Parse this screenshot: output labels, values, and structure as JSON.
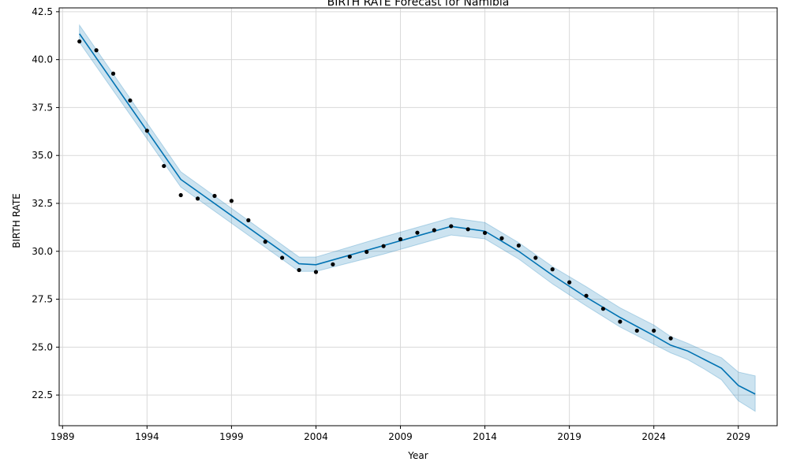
{
  "chart_data": {
    "type": "line",
    "title": "BIRTH RATE Forecast for Namibia",
    "xlabel": "Year",
    "ylabel": "BIRTH RATE",
    "xlim": [
      1988.8,
      2031.3
    ],
    "ylim": [
      20.9,
      42.7
    ],
    "grid": true,
    "x_ticks": [
      1989,
      1994,
      1999,
      2004,
      2009,
      2014,
      2019,
      2024,
      2029
    ],
    "y_ticks": [
      22.5,
      25.0,
      27.5,
      30.0,
      32.5,
      35.0,
      37.5,
      40.0,
      42.5
    ],
    "y_tick_labels": [
      "22.5",
      "25.0",
      "27.5",
      "30.0",
      "32.5",
      "35.0",
      "37.5",
      "40.0",
      "42.5"
    ],
    "colors": {
      "forecast_line": "#0072B2",
      "interval_fill": "#0072B2",
      "observed": "#000000",
      "grid": "#d9d9d9"
    },
    "observed": {
      "x": [
        1990,
        1991,
        1992,
        1993,
        1994,
        1995,
        1996,
        1997,
        1998,
        1999,
        2000,
        2001,
        2002,
        2003,
        2004,
        2005,
        2006,
        2007,
        2008,
        2009,
        2010,
        2011,
        2012,
        2013,
        2014,
        2015,
        2016,
        2017,
        2018,
        2019,
        2020,
        2021,
        2022,
        2023,
        2024,
        2025
      ],
      "y": [
        40.95,
        40.49,
        39.27,
        37.87,
        36.29,
        34.45,
        32.93,
        32.75,
        32.89,
        32.63,
        31.62,
        30.5,
        29.66,
        29.02,
        28.92,
        29.32,
        29.72,
        29.97,
        30.27,
        30.63,
        30.97,
        31.1,
        31.31,
        31.15,
        30.96,
        30.68,
        30.3,
        29.66,
        29.06,
        28.38,
        27.68,
        27.0,
        26.33,
        25.86,
        25.86,
        25.46
      ]
    },
    "forecast": {
      "x": [
        1990,
        1996,
        2003,
        2004,
        2008,
        2012,
        2014,
        2016,
        2018,
        2020,
        2022,
        2024,
        2025,
        2026,
        2027,
        2028,
        2029,
        2030
      ],
      "y": [
        41.35,
        33.75,
        29.35,
        29.3,
        30.3,
        31.3,
        31.05,
        30.0,
        28.75,
        27.6,
        26.55,
        25.6,
        25.1,
        24.8,
        24.35,
        23.9,
        23.0,
        22.55
      ],
      "upper": [
        41.8,
        34.15,
        29.7,
        29.7,
        30.75,
        31.75,
        31.5,
        30.45,
        29.2,
        28.15,
        27.05,
        26.15,
        25.55,
        25.2,
        24.8,
        24.45,
        23.7,
        23.5
      ],
      "lower": [
        40.9,
        33.35,
        28.95,
        28.95,
        29.85,
        30.85,
        30.65,
        29.6,
        28.3,
        27.15,
        26.05,
        25.15,
        24.7,
        24.35,
        23.85,
        23.3,
        22.2,
        21.65
      ]
    }
  }
}
